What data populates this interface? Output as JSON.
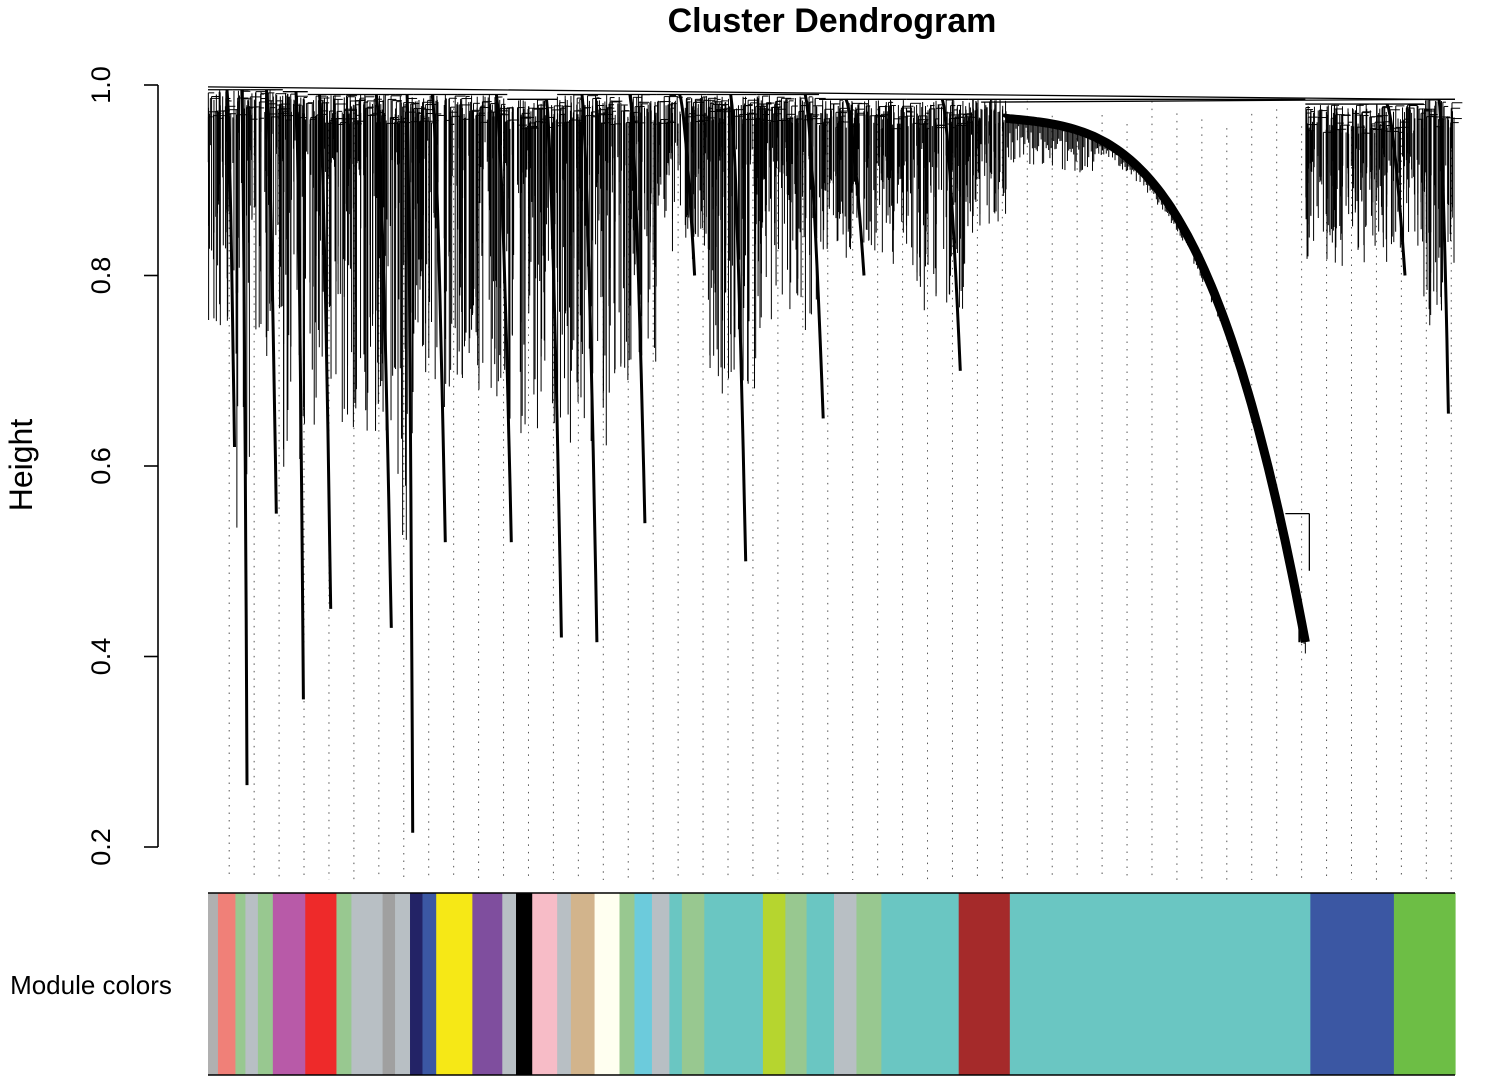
{
  "chart_data": {
    "type": "dendrogram",
    "title": "Cluster Dendrogram",
    "ylabel": "Height",
    "xlabel": "",
    "ylim": [
      0.2,
      1.0
    ],
    "yticks": [
      0.2,
      0.4,
      0.6,
      0.8,
      1.0
    ],
    "ytick_labels": [
      "0.2",
      "0.4",
      "0.6",
      "0.8",
      "1.0"
    ],
    "color_bar_label": "Module colors",
    "branches": [
      {
        "x": [
          0.0,
          0.02
        ],
        "top": 0.995,
        "bottom": 0.62
      },
      {
        "x": [
          0.02,
          0.034
        ],
        "top": 0.995,
        "bottom": 0.265
      },
      {
        "x": [
          0.034,
          0.06
        ],
        "top": 0.995,
        "bottom": 0.55
      },
      {
        "x": [
          0.06,
          0.08
        ],
        "top": 0.993,
        "bottom": 0.355
      },
      {
        "x": [
          0.08,
          0.11
        ],
        "top": 0.99,
        "bottom": 0.45
      },
      {
        "x": [
          0.11,
          0.15
        ],
        "top": 0.99,
        "bottom": 0.43
      },
      {
        "x": [
          0.15,
          0.165
        ],
        "top": 0.99,
        "bottom": 0.215
      },
      {
        "x": [
          0.165,
          0.2
        ],
        "top": 0.99,
        "bottom": 0.52
      },
      {
        "x": [
          0.2,
          0.24
        ],
        "top": 0.99,
        "bottom": 0.52
      },
      {
        "x": [
          0.24,
          0.28
        ],
        "top": 0.985,
        "bottom": 0.42
      },
      {
        "x": [
          0.28,
          0.32
        ],
        "top": 0.99,
        "bottom": 0.415
      },
      {
        "x": [
          0.32,
          0.36
        ],
        "top": 0.99,
        "bottom": 0.54
      },
      {
        "x": [
          0.36,
          0.4
        ],
        "top": 0.99,
        "bottom": 0.8
      },
      {
        "x": [
          0.4,
          0.44
        ],
        "top": 0.99,
        "bottom": 0.5
      },
      {
        "x": [
          0.44,
          0.49
        ],
        "top": 0.99,
        "bottom": 0.65
      },
      {
        "x": [
          0.49,
          0.56
        ],
        "top": 0.985,
        "bottom": 0.8
      },
      {
        "x": [
          0.56,
          0.61
        ],
        "top": 0.985,
        "bottom": 0.7
      },
      {
        "x": [
          0.61,
          0.88
        ],
        "top": 0.985,
        "bottom": 0.415
      },
      {
        "x": [
          0.88,
          0.975
        ],
        "top": 0.98,
        "bottom": 0.8
      },
      {
        "x": [
          0.975,
          1.0
        ],
        "top": 0.985,
        "bottom": 0.655
      }
    ],
    "module_colors": [
      {
        "color": "#B0B0B0",
        "span": [
          0.0,
          0.008
        ]
      },
      {
        "color": "#F08078",
        "span": [
          0.008,
          0.022
        ]
      },
      {
        "color": "#98C890",
        "span": [
          0.022,
          0.03
        ]
      },
      {
        "color": "#B8BFC4",
        "span": [
          0.03,
          0.04
        ]
      },
      {
        "color": "#98C890",
        "span": [
          0.04,
          0.052
        ]
      },
      {
        "color": "#B85AA8",
        "span": [
          0.052,
          0.078
        ]
      },
      {
        "color": "#EE2A2A",
        "span": [
          0.078,
          0.103
        ]
      },
      {
        "color": "#98C890",
        "span": [
          0.103,
          0.115
        ]
      },
      {
        "color": "#B8BFC4",
        "span": [
          0.115,
          0.14
        ]
      },
      {
        "color": "#A0A0A0",
        "span": [
          0.14,
          0.15
        ]
      },
      {
        "color": "#B8BFC4",
        "span": [
          0.15,
          0.162
        ]
      },
      {
        "color": "#232366",
        "span": [
          0.162,
          0.172
        ]
      },
      {
        "color": "#3B57A3",
        "span": [
          0.172,
          0.183
        ]
      },
      {
        "color": "#F6E816",
        "span": [
          0.183,
          0.212
        ]
      },
      {
        "color": "#7F4E9E",
        "span": [
          0.212,
          0.236
        ]
      },
      {
        "color": "#B8BFC4",
        "span": [
          0.236,
          0.247
        ]
      },
      {
        "color": "#000000",
        "span": [
          0.247,
          0.26
        ]
      },
      {
        "color": "#F7BCC7",
        "span": [
          0.26,
          0.28
        ]
      },
      {
        "color": "#B8BFC4",
        "span": [
          0.28,
          0.291
        ]
      },
      {
        "color": "#D2B48C",
        "span": [
          0.291,
          0.31
        ]
      },
      {
        "color": "#FFFFF0",
        "span": [
          0.31,
          0.33
        ]
      },
      {
        "color": "#98C890",
        "span": [
          0.33,
          0.342
        ]
      },
      {
        "color": "#6CCBDC",
        "span": [
          0.342,
          0.356
        ]
      },
      {
        "color": "#B8BFC4",
        "span": [
          0.356,
          0.37
        ]
      },
      {
        "color": "#6AC6C2",
        "span": [
          0.37,
          0.38
        ]
      },
      {
        "color": "#98C890",
        "span": [
          0.38,
          0.398
        ]
      },
      {
        "color": "#6AC6C2",
        "span": [
          0.398,
          0.445
        ]
      },
      {
        "color": "#B6D52F",
        "span": [
          0.445,
          0.463
        ]
      },
      {
        "color": "#98C890",
        "span": [
          0.463,
          0.48
        ]
      },
      {
        "color": "#6AC6C2",
        "span": [
          0.48,
          0.502
        ]
      },
      {
        "color": "#B8BFC4",
        "span": [
          0.502,
          0.52
        ]
      },
      {
        "color": "#98C890",
        "span": [
          0.52,
          0.54
        ]
      },
      {
        "color": "#6AC6C2",
        "span": [
          0.54,
          0.563
        ]
      },
      {
        "color": "#6AC6C2",
        "span": [
          0.563,
          0.602
        ]
      },
      {
        "color": "#A52A2A",
        "span": [
          0.602,
          0.643
        ]
      },
      {
        "color": "#6AC6C2",
        "span": [
          0.643,
          0.884
        ]
      },
      {
        "color": "#3B57A3",
        "span": [
          0.884,
          0.951
        ]
      },
      {
        "color": "#6DBE45",
        "span": [
          0.951,
          1.0
        ]
      }
    ]
  }
}
